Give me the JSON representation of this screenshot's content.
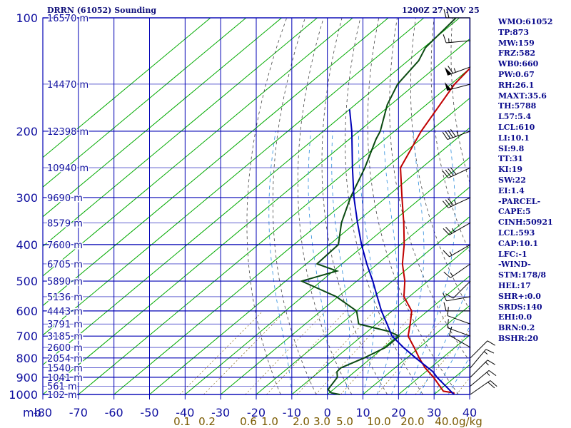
{
  "header": {
    "title": "DRRN (61052) Sounding",
    "timestamp": "1200Z 27 NOV 25"
  },
  "indices": [
    "WMO:61052",
    "TP:873",
    "MW:159",
    "FRZ:582",
    "WB0:660",
    "PW:0.67",
    "RH:26.1",
    "MAXT:35.6",
    "TH:5788",
    "L57:5.4",
    "LCL:610",
    "LI:10.1",
    "SI:9.8",
    "TT:31",
    "KI:19",
    "SW:22",
    "EI:1.4",
    "-PARCEL-",
    "CAPE:5",
    "CINH:50921",
    "LCL:593",
    "CAP:10.1",
    "LFC:-1",
    "-WIND-",
    "STM:178/8",
    "HEL:17",
    "SHR+:0.0",
    "SRDS:140",
    "EHI:0.0",
    "BRN:0.2",
    "BSHR:20"
  ],
  "chart_data": {
    "type": "skew-t log-p sounding",
    "xlabel": "mb",
    "ylabel": "",
    "temperature_ticks": [
      -80,
      -70,
      -60,
      -50,
      -40,
      -30,
      -20,
      -10,
      0,
      10,
      20,
      30,
      40
    ],
    "temperature_tick_labels": [
      "-80",
      "-70",
      "-60",
      "-50",
      "-40",
      "-30",
      "-20",
      "-10",
      "0",
      "10",
      "20",
      "30",
      "40"
    ],
    "pressure_ticks": [
      100,
      200,
      300,
      400,
      500,
      600,
      700,
      800,
      900,
      1000
    ],
    "pressure_tick_labels": [
      "100",
      "200",
      "300",
      "400",
      "500",
      "600",
      "700",
      "800",
      "900",
      "1000"
    ],
    "mixing_ratio_labels": [
      "0.1",
      "0.2",
      "0.6",
      "1.0",
      "2.0",
      "3.0",
      "5.0",
      "10.0",
      "20.0",
      "40.0"
    ],
    "mixing_ratio_unit": "g/kg",
    "mixing_ratio_label_text": [
      "0.1",
      "0.2",
      "0.6",
      "1.0",
      "2.0",
      "3.0",
      "5.0",
      "10.0",
      "20.0",
      "40.0",
      "g/kg"
    ],
    "height_labels": [
      "16570 m",
      "14470 m",
      "12398 m",
      "10940 m",
      "9690 m",
      "8579 m",
      "7600 m",
      "6705 m",
      "5890 m",
      "5136 m",
      "4443 m",
      "3791 m",
      "3185 m",
      "2600 m",
      "2054 m",
      "1540 m",
      "1041 m",
      "561 m",
      "102 m"
    ],
    "height_label_pressures": [
      100,
      150,
      200,
      250,
      300,
      350,
      400,
      450,
      500,
      550,
      600,
      650,
      700,
      750,
      800,
      850,
      900,
      950,
      1000
    ],
    "series": [
      {
        "name": "temperature",
        "color": "#c00000",
        "points": [
          [
            1000,
            35.6
          ],
          [
            990,
            35.0
          ],
          [
            980,
            31.5
          ],
          [
            900,
            24.0
          ],
          [
            850,
            18.5
          ],
          [
            800,
            13.5
          ],
          [
            750,
            8.5
          ],
          [
            700,
            3.0
          ],
          [
            650,
            -0.5
          ],
          [
            600,
            -4.5
          ],
          [
            550,
            -11.5
          ],
          [
            500,
            -16.5
          ],
          [
            450,
            -23.0
          ],
          [
            400,
            -29.0
          ],
          [
            350,
            -36.5
          ],
          [
            300,
            -45.5
          ],
          [
            250,
            -56.0
          ],
          [
            200,
            -62.5
          ],
          [
            150,
            -69.0
          ],
          [
            130,
            -70.5
          ],
          [
            120,
            -73.0
          ],
          [
            110,
            -75.0
          ],
          [
            100,
            -79.0
          ]
        ]
      },
      {
        "name": "dewpoint",
        "color": "#0b4a12",
        "points": [
          [
            1000,
            3.5
          ],
          [
            990,
            0.5
          ],
          [
            970,
            -1.5
          ],
          [
            900,
            -3.0
          ],
          [
            870,
            -5.0
          ],
          [
            850,
            -5.2
          ],
          [
            800,
            -2.0
          ],
          [
            750,
            0.5
          ],
          [
            700,
            0.5
          ],
          [
            680,
            -4.0
          ],
          [
            650,
            -15.0
          ],
          [
            600,
            -20.0
          ],
          [
            550,
            -30.5
          ],
          [
            500,
            -45.5
          ],
          [
            470,
            -39.0
          ],
          [
            450,
            -47.0
          ],
          [
            400,
            -47.5
          ],
          [
            350,
            -54.0
          ],
          [
            300,
            -60.0
          ],
          [
            250,
            -66.0
          ],
          [
            210,
            -72.5
          ],
          [
            200,
            -74.0
          ],
          [
            170,
            -81.0
          ],
          [
            150,
            -85.0
          ],
          [
            130,
            -87.0
          ],
          [
            120,
            -89.5
          ],
          [
            100,
            -91.0
          ]
        ]
      },
      {
        "name": "parcel",
        "color": "#0000b8",
        "points": [
          [
            1000,
            35.6
          ],
          [
            900,
            25.0
          ],
          [
            870,
            22.0
          ],
          [
            800,
            12.5
          ],
          [
            750,
            5.5
          ],
          [
            700,
            -1.5
          ],
          [
            650,
            -7.0
          ],
          [
            600,
            -13.0
          ],
          [
            550,
            -19.0
          ],
          [
            500,
            -25.5
          ],
          [
            450,
            -33.0
          ],
          [
            400,
            -41.0
          ],
          [
            350,
            -49.5
          ],
          [
            300,
            -59.0
          ],
          [
            250,
            -69.5
          ],
          [
            200,
            -82.0
          ],
          [
            175,
            -90.0
          ]
        ]
      }
    ],
    "wind_barbs": [
      {
        "pressure": 100,
        "direction_deg": 270,
        "speed_kt": 20
      },
      {
        "pressure": 115,
        "direction_deg": 265,
        "speed_kt": 15
      },
      {
        "pressure": 135,
        "direction_deg": 250,
        "speed_kt": 65
      },
      {
        "pressure": 150,
        "direction_deg": 255,
        "speed_kt": 55
      },
      {
        "pressure": 200,
        "direction_deg": 250,
        "speed_kt": 45
      },
      {
        "pressure": 250,
        "direction_deg": 245,
        "speed_kt": 40
      },
      {
        "pressure": 300,
        "direction_deg": 245,
        "speed_kt": 35
      },
      {
        "pressure": 350,
        "direction_deg": 240,
        "speed_kt": 25
      },
      {
        "pressure": 400,
        "direction_deg": 240,
        "speed_kt": 15
      },
      {
        "pressure": 450,
        "direction_deg": 235,
        "speed_kt": 15
      },
      {
        "pressure": 500,
        "direction_deg": 225,
        "speed_kt": 10
      },
      {
        "pressure": 550,
        "direction_deg": 260,
        "speed_kt": 10
      },
      {
        "pressure": 600,
        "direction_deg": 270,
        "speed_kt": 10
      },
      {
        "pressure": 650,
        "direction_deg": 290,
        "speed_kt": 10
      },
      {
        "pressure": 700,
        "direction_deg": 290,
        "speed_kt": 10
      },
      {
        "pressure": 750,
        "direction_deg": 300,
        "speed_kt": 10
      },
      {
        "pressure": 800,
        "direction_deg": 45,
        "speed_kt": 10
      },
      {
        "pressure": 850,
        "direction_deg": 40,
        "speed_kt": 15
      },
      {
        "pressure": 900,
        "direction_deg": 45,
        "speed_kt": 15
      },
      {
        "pressure": 950,
        "direction_deg": 50,
        "speed_kt": 15
      },
      {
        "pressure": 1000,
        "direction_deg": 55,
        "speed_kt": 20
      }
    ],
    "colors": {
      "grid": "#0000b4",
      "isotherms": "#00aa00",
      "dry_adiabats": "#454545",
      "moist_adiabats": "#2a8cdc",
      "mixing_ratio_text": "#7a5a00",
      "wind": "#000000"
    }
  }
}
